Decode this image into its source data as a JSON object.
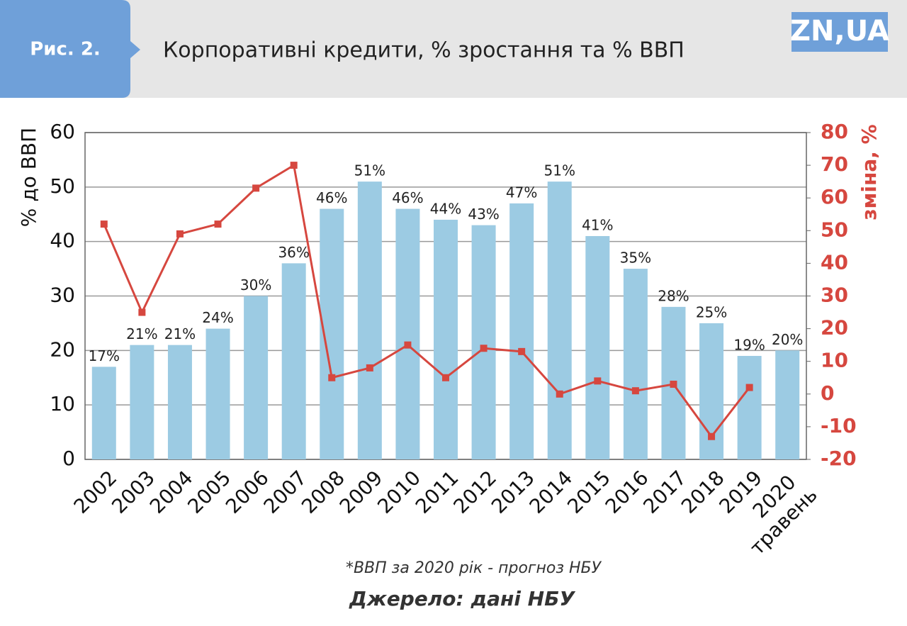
{
  "header": {
    "figure_label": "Рис. 2.",
    "logo": "ZN,UA"
  },
  "chart_data": {
    "type": "bar-line",
    "title": "Корпоративні кредити, % зростання та % ВВП",
    "categories": [
      "2002",
      "2003",
      "2004",
      "2005",
      "2006",
      "2007",
      "2008",
      "2009",
      "2010",
      "2011",
      "2012",
      "2013",
      "2014",
      "2015",
      "2016",
      "2017",
      "2018",
      "2019",
      "2020 травень"
    ],
    "series": [
      {
        "name": "% до ВВП",
        "type": "bar",
        "color": "#9ccbe3",
        "values": [
          17,
          21,
          21,
          24,
          30,
          36,
          46,
          51,
          46,
          44,
          43,
          47,
          51,
          41,
          35,
          28,
          25,
          19,
          20
        ],
        "value_labels": [
          "17%",
          "21%",
          "21%",
          "24%",
          "30%",
          "36%",
          "46%",
          "51%",
          "46%",
          "44%",
          "43%",
          "47%",
          "51%",
          "41%",
          "35%",
          "28%",
          "25%",
          "19%",
          "20%"
        ]
      },
      {
        "name": "зміна, %",
        "type": "line",
        "axis": "y2",
        "color": "#d6473f",
        "values": [
          52,
          25,
          49,
          52,
          63,
          70,
          5,
          8,
          15,
          5,
          14,
          13,
          0,
          4,
          1,
          3,
          -13,
          2,
          null
        ]
      }
    ],
    "ylabel": "% до ВВП",
    "y2label": "зміна, %",
    "ylim": [
      0,
      60
    ],
    "yticks": [
      0,
      10,
      20,
      30,
      40,
      50,
      60
    ],
    "y2lim": [
      -20,
      80
    ],
    "y2ticks": [
      -20,
      -10,
      0,
      10,
      20,
      30,
      40,
      50,
      60,
      70,
      80
    ],
    "grid": true,
    "footnote": "*ВВП за 2020 рік - прогноз НБУ",
    "source": "Джерело: дані НБУ"
  }
}
